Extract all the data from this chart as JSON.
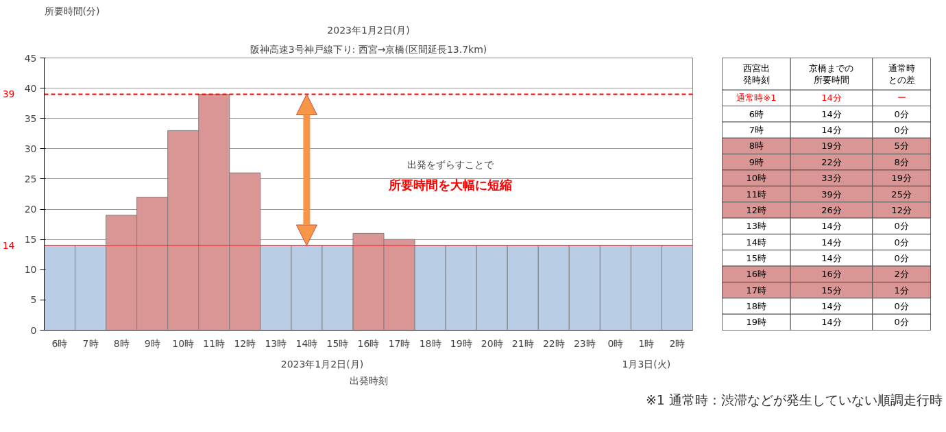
{
  "chart_data": [
    {
      "type": "bar",
      "title": "2023年1月2日(月)",
      "subtitle": "阪神高速3号神戸線下り: 西宮→京橋(区間延長13.7km)",
      "ylabel": "所要時間(分)",
      "xlabel": "出発時刻",
      "categories": [
        "6時",
        "7時",
        "8時",
        "9時",
        "10時",
        "11時",
        "12時",
        "13時",
        "14時",
        "15時",
        "16時",
        "17時",
        "18時",
        "19時",
        "20時",
        "21時",
        "22時",
        "23時",
        "0時",
        "1時",
        "2時"
      ],
      "values": [
        14,
        14,
        19,
        22,
        33,
        39,
        26,
        14,
        14,
        14,
        16,
        15,
        14,
        14,
        14,
        14,
        14,
        14,
        14,
        14,
        14
      ],
      "colors": [
        "#b9cde5",
        "#b9cde5",
        "#d99694",
        "#d99694",
        "#d99694",
        "#d99694",
        "#d99694",
        "#b9cde5",
        "#b9cde5",
        "#b9cde5",
        "#d99694",
        "#d99694",
        "#b9cde5",
        "#b9cde5",
        "#b9cde5",
        "#b9cde5",
        "#b9cde5",
        "#b9cde5",
        "#b9cde5",
        "#b9cde5",
        "#b9cde5"
      ],
      "ylim": [
        0,
        45
      ],
      "yticks": [
        0,
        5,
        10,
        15,
        20,
        25,
        30,
        35,
        40,
        45
      ],
      "grid": "y",
      "ref_lines": [
        {
          "axis": "y",
          "value": 39,
          "label": "39",
          "color": "#ff0000",
          "line_style": "dashed"
        },
        {
          "axis": "y",
          "value": 14,
          "label": "14",
          "color": "#ff0000",
          "line_style": "solid"
        }
      ],
      "annotations": [
        "2023年1月2日(月)",
        "1月3日(火)",
        "出発をずらすことで",
        "所要時間を大幅に短縮"
      ]
    },
    {
      "type": "heatmap",
      "ylabel": "西宮出発時刻",
      "categories": [
        "京橋までの所要時間",
        "通常時との差"
      ],
      "y_categories": [
        "通常時※1",
        "6時",
        "7時",
        "8時",
        "9時",
        "10時",
        "11時",
        "12時",
        "13時",
        "14時",
        "15時",
        "16時",
        "17時",
        "18時",
        "19時"
      ],
      "cells": [
        [
          14,
          null
        ],
        [
          14,
          0
        ],
        [
          14,
          0
        ],
        [
          19,
          5
        ],
        [
          22,
          8
        ],
        [
          33,
          19
        ],
        [
          39,
          25
        ],
        [
          26,
          12
        ],
        [
          14,
          0
        ],
        [
          14,
          0
        ],
        [
          14,
          0
        ],
        [
          16,
          2
        ],
        [
          15,
          1
        ],
        [
          14,
          0
        ],
        [
          14,
          0
        ]
      ],
      "cell_labels": [
        [
          "14分",
          "ー"
        ],
        [
          "14分",
          "0分"
        ],
        [
          "14分",
          "0分"
        ],
        [
          "19分",
          "5分"
        ],
        [
          "22分",
          "8分"
        ],
        [
          "33分",
          "19分"
        ],
        [
          "39分",
          "25分"
        ],
        [
          "26分",
          "12分"
        ],
        [
          "14分",
          "0分"
        ],
        [
          "14分",
          "0分"
        ],
        [
          "14分",
          "0分"
        ],
        [
          "16分",
          "2分"
        ],
        [
          "15分",
          "1分"
        ],
        [
          "14分",
          "0分"
        ],
        [
          "14分",
          "0分"
        ]
      ],
      "colors": [
        "#ffffff",
        "#d99694"
      ],
      "annotations": [
        "※1 通常時：渋滞などが発生していない順調走行時"
      ]
    }
  ]
}
